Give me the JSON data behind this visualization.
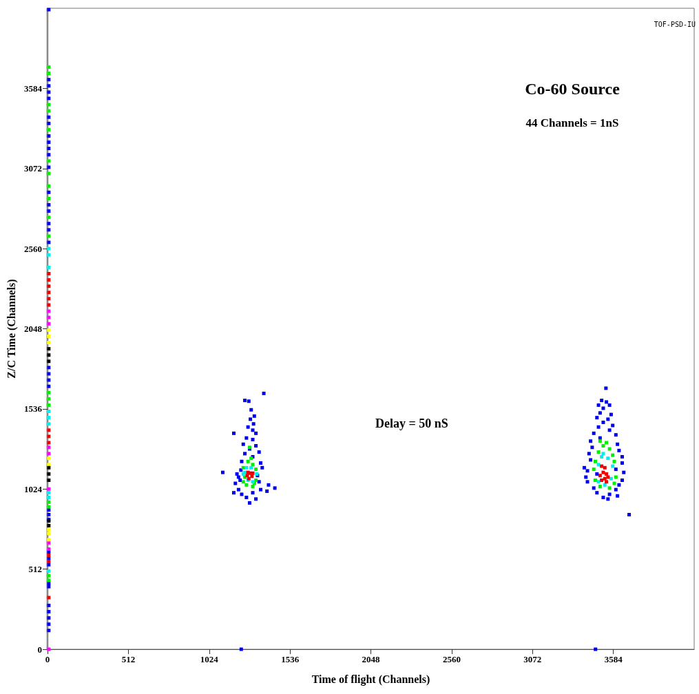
{
  "chart_data": {
    "type": "scatter",
    "title": "Co-60 Source",
    "subtitle": "44 Channels = 1nS",
    "xlabel": "Time of flight (Channels)",
    "ylabel": "Z/C Time (Channels)",
    "annotations": [
      "Delay = 50 nS",
      "TOF-PSD-IU"
    ],
    "xlim": [
      0,
      4096
    ],
    "xticks": [
      0,
      512,
      1024,
      1536,
      2048,
      2560,
      3072,
      3584
    ],
    "ylim": [
      0,
      4096
    ],
    "yticks": [
      0,
      512,
      1024,
      1536,
      2048,
      2560,
      3072,
      3584
    ],
    "grid": false,
    "marker": "square",
    "series": [
      {
        "color": "#0000ee",
        "x": [
          8,
          8,
          8,
          8,
          8,
          8,
          8,
          8,
          8,
          8,
          8,
          8,
          8,
          8,
          8,
          8,
          8,
          8,
          8,
          8,
          8,
          8,
          8,
          8,
          8,
          8,
          8,
          8,
          8,
          8,
          8,
          8,
          8,
          8,
          8,
          1227,
          3471,
          1370,
          1250,
          1275,
          1290,
          1310,
          1285,
          1305,
          1270,
          1300,
          1320,
          1180,
          1260,
          1300,
          1240,
          1320,
          1280,
          1340,
          1250,
          1300,
          1230,
          1350,
          1360,
          1110,
          1200,
          1330,
          1220,
          1340,
          1190,
          1400,
          1440,
          1210,
          1350,
          1230,
          1300,
          1260,
          1320,
          1280,
          1180,
          1390,
          1225,
          1210,
          3537,
          3510,
          3540,
          3490,
          3560,
          3520,
          3500,
          3570,
          3480,
          3550,
          3520,
          3580,
          3490,
          3560,
          3460,
          3600,
          3500,
          3440,
          3610,
          3450,
          3620,
          3430,
          3640,
          3440,
          3640,
          3400,
          3420,
          3650,
          3410,
          3640,
          3420,
          3620,
          3460,
          3600,
          3480,
          3560,
          3520,
          3550,
          3610,
          3684,
          3480,
          3600
        ],
        "values": [
          4087,
          3640,
          3600,
          3560,
          3520,
          3400,
          3360,
          3280,
          3240,
          3200,
          3160,
          3080,
          2920,
          2840,
          2800,
          2720,
          2680,
          2600,
          1800,
          1760,
          1720,
          1680,
          890,
          860,
          830,
          620,
          580,
          540,
          420,
          400,
          280,
          240,
          200,
          160,
          120,
          0,
          0,
          1635,
          1590,
          1585,
          1530,
          1490,
          1470,
          1440,
          1420,
          1400,
          1380,
          1380,
          1350,
          1340,
          1310,
          1300,
          1280,
          1260,
          1250,
          1230,
          1200,
          1190,
          1160,
          1130,
          1120,
          1110,
          1080,
          1070,
          1060,
          1050,
          1030,
          1020,
          1020,
          990,
          1000,
          970,
          960,
          935,
          1000,
          1010,
          1145,
          1100,
          1668,
          1590,
          1580,
          1560,
          1560,
          1540,
          1510,
          1500,
          1480,
          1470,
          1450,
          1430,
          1420,
          1400,
          1380,
          1370,
          1350,
          1330,
          1310,
          1290,
          1270,
          1250,
          1230,
          1210,
          1190,
          1160,
          1140,
          1130,
          1100,
          1080,
          1070,
          1050,
          1030,
          1020,
          1000,
          990,
          970,
          960,
          980,
          860,
          1120,
          1150
        ]
      },
      {
        "color": "#00ee00",
        "x": [
          8,
          8,
          8,
          8,
          8,
          8,
          8,
          8,
          8,
          8,
          8,
          8,
          8,
          8,
          8,
          8,
          8,
          8,
          1270,
          1300,
          1240,
          1320,
          1250,
          1320,
          1260,
          1300,
          1240,
          1280,
          1290,
          1310,
          3500,
          3540,
          3560,
          3490,
          3580,
          3470,
          3590,
          3460,
          3600,
          3470,
          3590,
          3500,
          3560,
          3520
        ],
        "values": [
          3720,
          3680,
          3480,
          3440,
          3320,
          3120,
          3040,
          2960,
          2880,
          2760,
          2640,
          1640,
          1600,
          1560,
          940,
          910,
          440,
          470,
          1200,
          1180,
          1160,
          1150,
          1100,
          1080,
          1050,
          1040,
          1070,
          1290,
          1220,
          1060,
          1330,
          1320,
          1280,
          1260,
          1240,
          1200,
          1200,
          1150,
          1100,
          1080,
          1060,
          1040,
          1030,
          1300
        ]
      },
      {
        "color": "#00eeee",
        "x": [
          8,
          8,
          8,
          8,
          8,
          8,
          8,
          8,
          8,
          1250,
          1325,
          1270,
          1290,
          1260,
          1300,
          1240,
          3510,
          3550,
          3490,
          3580,
          3490,
          3570,
          3530,
          3520
        ],
        "values": [
          2560,
          2520,
          2440,
          1520,
          1480,
          1440,
          1000,
          970,
          500,
          1130,
          1120,
          1080,
          1160,
          1160,
          1070,
          1120,
          1230,
          1220,
          1180,
          1170,
          1070,
          1090,
          1050,
          1250
        ]
      },
      {
        "color": "#ee0000",
        "x": [
          8,
          8,
          8,
          8,
          8,
          8,
          8,
          8,
          8,
          8,
          8,
          8,
          1265,
          1295,
          1270,
          1285,
          1300,
          1275,
          3510,
          3530,
          3520,
          3540,
          3500,
          3530,
          3550,
          3510,
          3540
        ],
        "values": [
          2400,
          2360,
          2320,
          2280,
          2240,
          2200,
          1400,
          1360,
          1320,
          600,
          560,
          330,
          1110,
          1105,
          1130,
          1125,
          1125,
          1090,
          1170,
          1160,
          1130,
          1120,
          1110,
          1090,
          1100,
          1080,
          1070
        ]
      },
      {
        "color": "#ff00ff",
        "x": [
          8,
          8,
          8,
          8,
          8,
          8,
          8,
          8,
          8
        ],
        "values": [
          2160,
          2120,
          2080,
          1290,
          1250,
          1024,
          680,
          640,
          0
        ]
      },
      {
        "color": "#ffff00",
        "x": [
          8,
          8,
          8,
          8,
          8,
          8,
          8,
          8
        ],
        "values": [
          2040,
          2000,
          1960,
          1220,
          1180,
          765,
          740,
          700
        ]
      },
      {
        "color": "#000000",
        "x": [
          8,
          8,
          8,
          8,
          8,
          8,
          8,
          8
        ],
        "values": [
          1920,
          1880,
          1840,
          1160,
          1120,
          1080,
          820,
          790
        ]
      }
    ]
  }
}
